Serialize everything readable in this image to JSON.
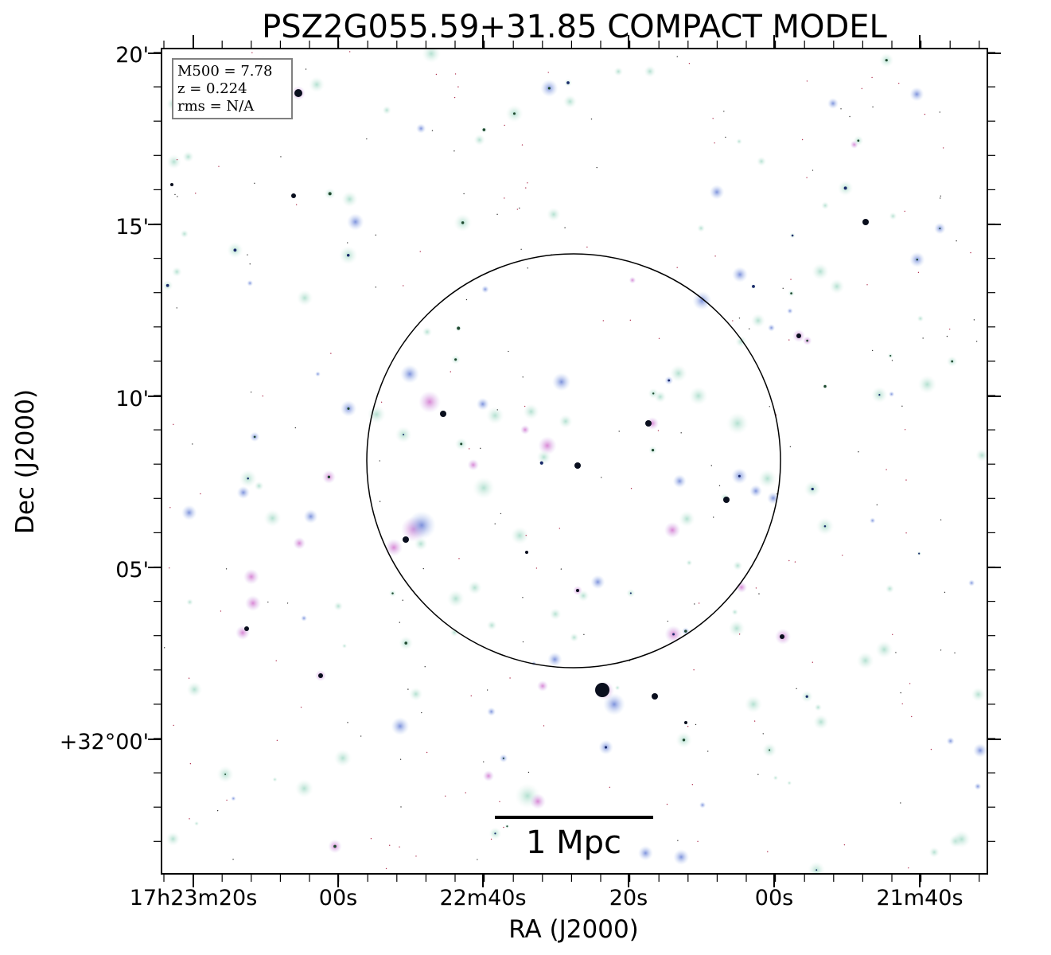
{
  "title": "PSZ2G055.59+31.85 COMPACT MODEL",
  "info_box": {
    "m500": "M500 = 7.78",
    "z": "z = 0.224",
    "rms": "rms = N/A"
  },
  "axes": {
    "xlabel": "RA (J2000)",
    "ylabel": "Dec (J2000)",
    "x_ticks": [
      "17h23m20s",
      "00s",
      "22m40s",
      "20s",
      "00s",
      "21m40s"
    ],
    "y_ticks": [
      "20'",
      "15'",
      "10'",
      "05'",
      "+32°00'"
    ]
  },
  "scale_bar": {
    "label": "1 Mpc"
  },
  "colors": {
    "frame": "#000000",
    "info_box_border": "#808080",
    "source_teal": "#b8e0d2",
    "source_blue": "#8fa8e8",
    "source_magenta": "#d98fd8",
    "source_core": "#101830"
  }
}
